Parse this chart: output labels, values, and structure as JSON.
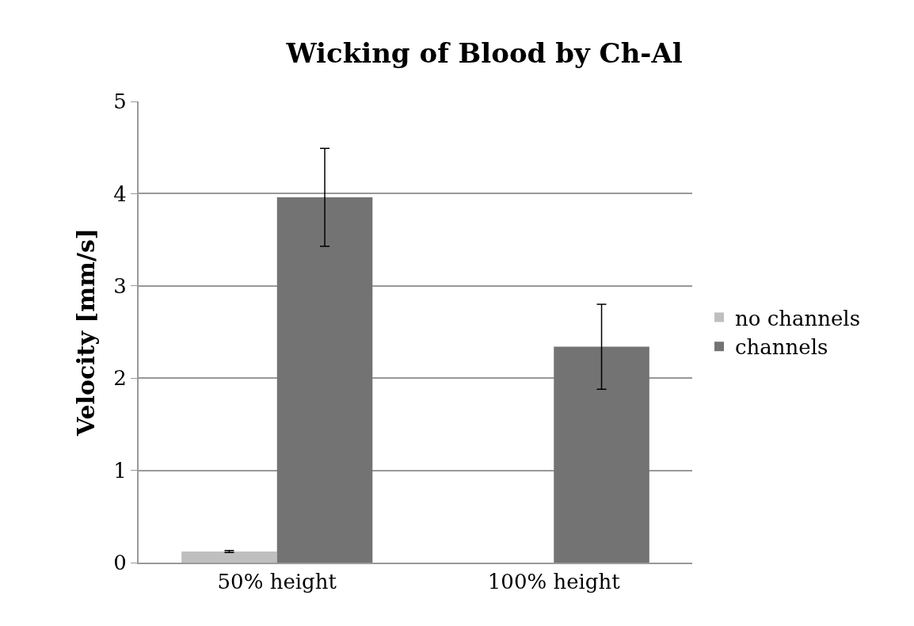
{
  "chart_data": {
    "type": "bar",
    "title": "Wicking of Blood by Ch-Al",
    "ylabel": "Velocity [mm/s]",
    "categories": [
      "50% height",
      "100% height"
    ],
    "series": [
      {
        "name": "no channels",
        "color": "#bfbfbf",
        "values": [
          0.12,
          null
        ],
        "errors": [
          0.01,
          null
        ]
      },
      {
        "name": "channels",
        "color": "#737373",
        "values": [
          3.96,
          2.34
        ],
        "errors": [
          0.53,
          0.46
        ]
      }
    ],
    "ylim": [
      0,
      5
    ],
    "yticks": [
      0,
      1,
      2,
      3,
      4,
      5
    ],
    "grid": "y",
    "legend": "right"
  }
}
